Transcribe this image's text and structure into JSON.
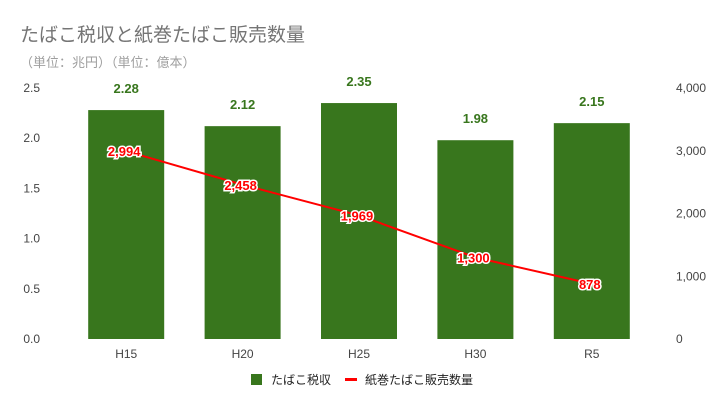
{
  "chart_data": {
    "type": "bar+line",
    "title": "たばこ税収と紙巻たばこ販売数量",
    "subtitle": "（単位：兆円）（単位：億本）",
    "categories": [
      "H15",
      "H20",
      "H25",
      "H30",
      "R5"
    ],
    "series": [
      {
        "name": "たばこ税収",
        "type": "bar",
        "axis": "left",
        "color": "#38761d",
        "values": [
          2.28,
          2.12,
          2.35,
          1.98,
          2.15
        ],
        "labels": [
          "2.28",
          "2.12",
          "2.35",
          "1.98",
          "2.15"
        ]
      },
      {
        "name": "紙巻たばこ販売数量",
        "type": "line",
        "axis": "right",
        "color": "#ff0000",
        "values": [
          2994,
          2458,
          1969,
          1300,
          878
        ],
        "labels": [
          "2,994",
          "2,458",
          "1,969",
          "1,300",
          "878"
        ]
      }
    ],
    "left_axis": {
      "ylim": [
        0,
        2.5
      ],
      "ticks": [
        "0.0",
        "0.5",
        "1.0",
        "1.5",
        "2.0",
        "2.5"
      ]
    },
    "right_axis": {
      "ylim": [
        0,
        4000
      ],
      "ticks": [
        "0",
        "1,000",
        "2,000",
        "3,000",
        "4,000"
      ]
    },
    "grid": false,
    "legend": "bottom"
  }
}
